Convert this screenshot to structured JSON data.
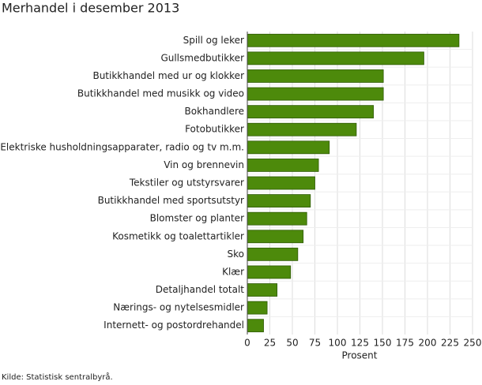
{
  "chart_data": {
    "type": "barh",
    "title": "Merhandel i desember 2013",
    "categories": [
      "Spill og leker",
      "Gullsmedbutikker",
      "Butikkhandel med ur og klokker",
      "Butikkhandel med musikk og video",
      "Bokhandlere",
      "Fotobutikker",
      "Elektriske husholdningsapparater, radio og tv m.m.",
      "Vin og brennevin",
      "Tekstiler og utstyrsvarer",
      "Butikkhandel med sportsutstyr",
      "Blomster og planter",
      "Kosmetikk og toalettartikler",
      "Sko",
      "Klær",
      "Detaljhandel totalt",
      "Nærings- og nytelsesmidler",
      "Internett- og postordrehandel"
    ],
    "values": [
      235,
      196,
      151,
      151,
      140,
      121,
      91,
      79,
      75,
      70,
      66,
      62,
      56,
      48,
      33,
      22,
      18
    ],
    "color": "#4d8a0b",
    "xlabel": "Prosent",
    "xlim": [
      0,
      250
    ],
    "xticks": [
      0,
      25,
      50,
      75,
      100,
      125,
      150,
      175,
      200,
      225,
      250
    ],
    "grid": true,
    "source": "Kilde: Statistisk sentralbyrå."
  }
}
